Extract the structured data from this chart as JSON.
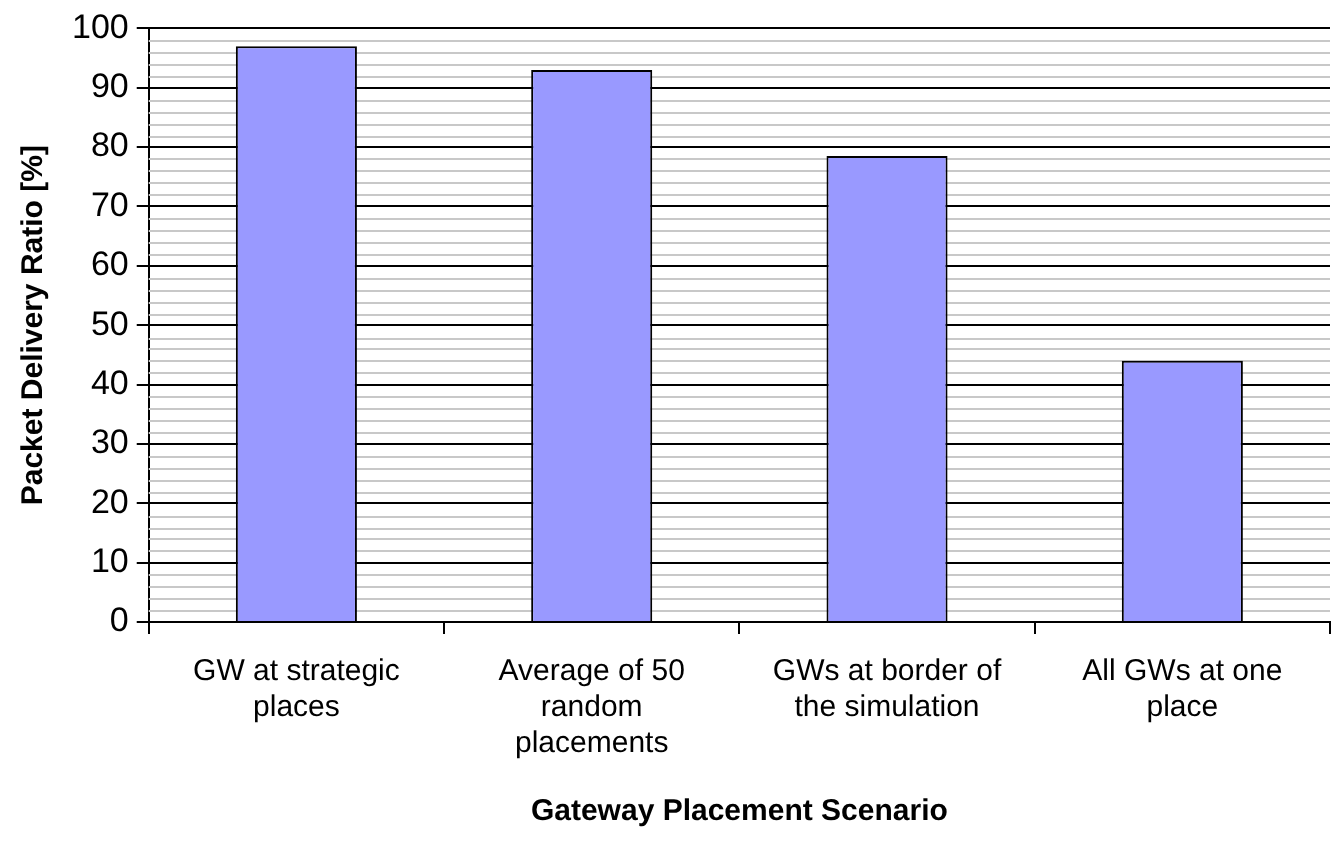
{
  "chart_data": {
    "type": "bar",
    "xlabel": "Gateway Placement Scenario",
    "ylabel": "Packet Delivery Ratio [%]",
    "categories": [
      "GW at strategic places",
      "Average of 50 random placements",
      "GWs at border of the simulation",
      "All GWs at one place"
    ],
    "values": [
      97,
      93,
      78.5,
      44
    ],
    "color": "#9999ff",
    "ylim": [
      0,
      100
    ],
    "yticks": [
      0,
      10,
      20,
      30,
      40,
      50,
      60,
      70,
      80,
      90,
      100
    ],
    "grid": "y",
    "legend": false
  }
}
